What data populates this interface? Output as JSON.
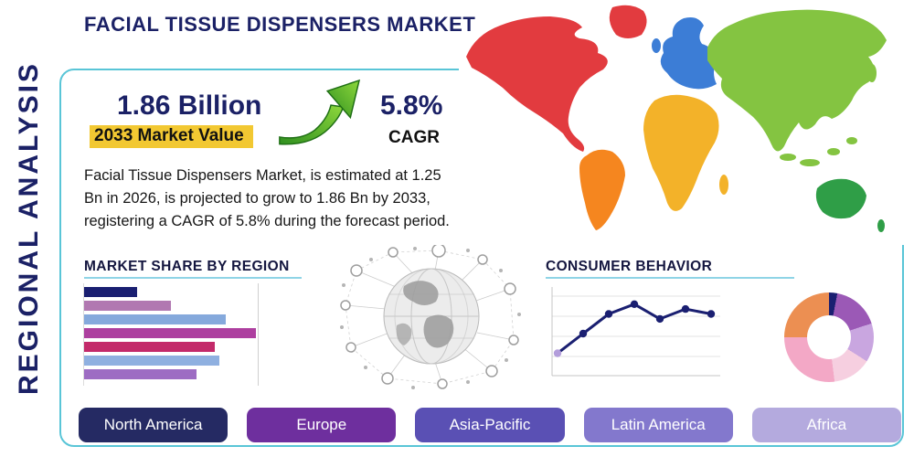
{
  "header": {
    "title": "FACIAL TISSUE DISPENSERS MARKET"
  },
  "left_panel": {
    "vertical_label": "REGIONAL ANALYSIS"
  },
  "highlights": {
    "market_value": "1.86 Billion",
    "market_value_caption": "2033 Market Value",
    "cagr": "5.8%",
    "cagr_caption": "CAGR",
    "description": "Facial Tissue Dispensers Market, is estimated at 1.25 Bn in 2026, is projected to grow to 1.86 Bn by 2033, registering a CAGR of 5.8% during the forecast period."
  },
  "sections": {
    "market_share_title": "MARKET SHARE BY REGION",
    "consumer_behavior_title": "CONSUMER BEHAVIOR"
  },
  "regions": [
    {
      "label": "North America",
      "color": "#252a63"
    },
    {
      "label": "Europe",
      "color": "#6e2f9e"
    },
    {
      "label": "Asia-Pacific",
      "color": "#5a50b4"
    },
    {
      "label": "Latin America",
      "color": "#8378cd"
    },
    {
      "label": "Africa",
      "color": "#b4aade"
    }
  ],
  "colors": {
    "accent_teal": "#59c5d7",
    "navy": "#1b2166",
    "highlight_yellow": "#f2c832",
    "arrow_green": "#53b92e"
  },
  "chart_data": [
    {
      "type": "bar",
      "title": "MARKET SHARE BY REGION",
      "orientation": "horizontal",
      "categories": [
        "",
        "",
        "",
        "",
        "",
        "",
        ""
      ],
      "values": [
        23,
        38,
        62,
        75,
        57,
        59,
        49
      ],
      "unit": "relative length (% of chart width)",
      "colors": [
        "#1a1f71",
        "#b178b1",
        "#85a9dc",
        "#ad3f9f",
        "#c32a6a",
        "#8fb0e0",
        "#9d6cc3"
      ],
      "grid": true,
      "note": "bars are unlabeled in the infographic"
    },
    {
      "type": "line",
      "title": "CONSUMER BEHAVIOR",
      "x": [
        1,
        2,
        3,
        4,
        5,
        6,
        7
      ],
      "values": [
        2,
        4,
        6,
        7,
        5.5,
        6.5,
        6
      ],
      "ylim": [
        0,
        8
      ],
      "grid": true,
      "line_color": "#1a1f71",
      "first_point_color": "#b39ddb",
      "note": "axes are unlabeled in the infographic"
    },
    {
      "type": "pie",
      "donut": true,
      "title": "",
      "slices": [
        {
          "value": 3,
          "color": "#1a1f71"
        },
        {
          "value": 17,
          "color": "#9b59b6"
        },
        {
          "value": 14,
          "color": "#c9a6e0"
        },
        {
          "value": 14,
          "color": "#f6cfe0"
        },
        {
          "value": 27,
          "color": "#f3a8c6"
        },
        {
          "value": 25,
          "color": "#ec8f52"
        }
      ],
      "unit": "%",
      "note": "slices are unlabeled in the infographic"
    }
  ]
}
